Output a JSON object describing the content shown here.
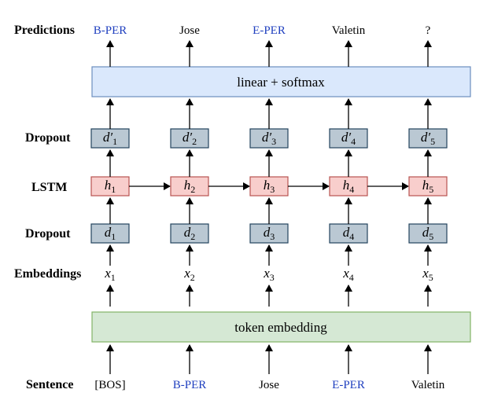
{
  "row_labels": {
    "predictions": "Predictions",
    "dropout_top": "Dropout",
    "lstm": "LSTM",
    "dropout_bottom": "Dropout",
    "embeddings": "Embeddings",
    "sentence": "Sentence"
  },
  "predictions": [
    {
      "text": "B-PER",
      "color": "#1f3fbf"
    },
    {
      "text": "Jose",
      "color": "#000000"
    },
    {
      "text": "E-PER",
      "color": "#1f3fbf"
    },
    {
      "text": "Valetin",
      "color": "#000000"
    },
    {
      "text": "?",
      "color": "#000000"
    }
  ],
  "sentence": [
    {
      "text": "[BOS]",
      "color": "#000000"
    },
    {
      "text": "B-PER",
      "color": "#1f3fbf"
    },
    {
      "text": "Jose",
      "color": "#000000"
    },
    {
      "text": "E-PER",
      "color": "#1f3fbf"
    },
    {
      "text": "Valetin",
      "color": "#000000"
    }
  ],
  "bands": {
    "softmax": "linear + softmax",
    "embedding": "token embedding"
  },
  "symbols": {
    "dropout_top": "d′",
    "lstm": "h",
    "dropout_bottom": "d",
    "embedding": "x"
  },
  "subscripts": [
    "1",
    "2",
    "3",
    "4",
    "5"
  ],
  "colors": {
    "softmax_fill": "#dae8fc",
    "softmax_stroke": "#6c8ebf",
    "embedding_fill": "#d5e8d4",
    "embedding_stroke": "#82b366",
    "dropout_fill": "#bac8d3",
    "dropout_stroke": "#23445d",
    "lstm_fill": "#f8cecc",
    "lstm_stroke": "#b85450",
    "blue_text": "#1f3fbf"
  }
}
